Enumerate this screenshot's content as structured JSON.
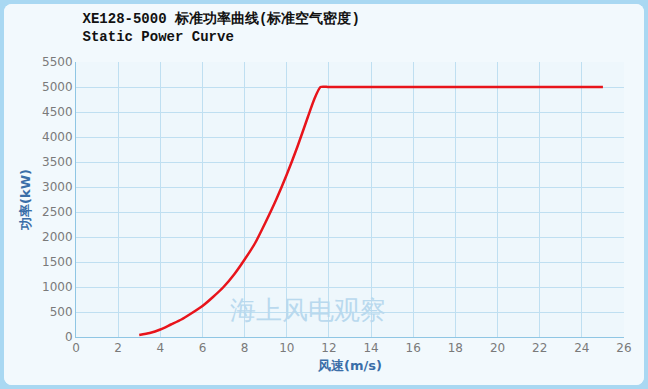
{
  "chart_data": {
    "type": "line",
    "title": "XE128-5000 标准功率曲线(标准空气密度)",
    "subtitle": "Static Power Curve",
    "x_label": "风速(m/s)",
    "y_label": "功率(kW)",
    "annotations": [
      {
        "text": "海上风电观察",
        "x": 11,
        "y": 550
      }
    ],
    "x": [
      3,
      3.5,
      4,
      4.5,
      5,
      5.5,
      6,
      6.5,
      7,
      7.5,
      8,
      8.5,
      9,
      9.5,
      10,
      10.5,
      11,
      11.3,
      11.6,
      12,
      14,
      16,
      18,
      20,
      22,
      24,
      25
    ],
    "series": [
      {
        "name": "XE128-5000",
        "color": "#e8141b",
        "values": [
          40,
          80,
          150,
          250,
          350,
          480,
          620,
          800,
          1000,
          1250,
          1550,
          1880,
          2300,
          2750,
          3250,
          3800,
          4400,
          4750,
          5000,
          5000,
          5000,
          5000,
          5000,
          5000,
          5000,
          5000,
          5000
        ]
      }
    ],
    "xlim": [
      0,
      26
    ],
    "xticks": [
      0,
      2,
      4,
      6,
      8,
      10,
      12,
      14,
      16,
      18,
      20,
      22,
      24,
      26
    ],
    "ylim": [
      0,
      5500
    ],
    "yticks": [
      0,
      500,
      1000,
      1500,
      2000,
      2500,
      3000,
      3500,
      4000,
      4500,
      5000,
      5500
    ],
    "grid": true
  }
}
